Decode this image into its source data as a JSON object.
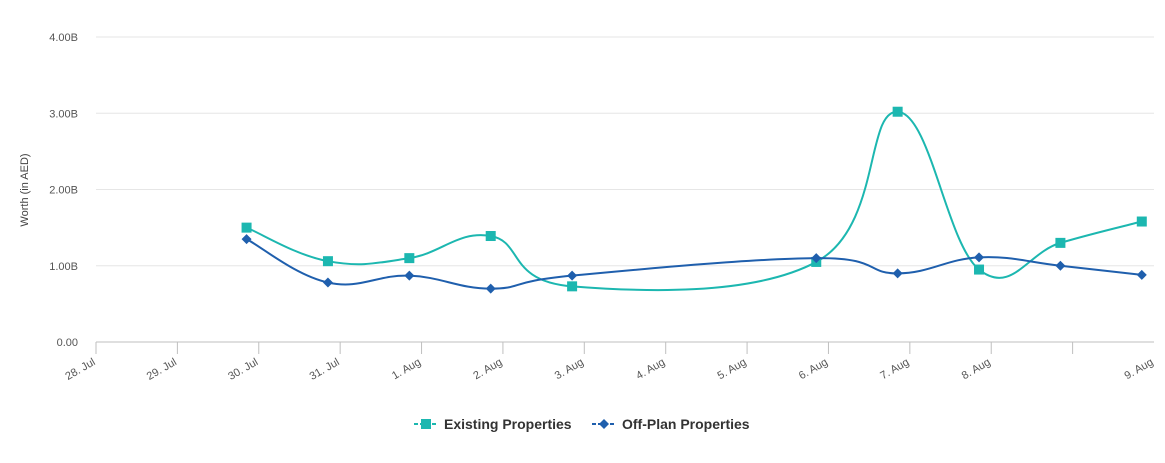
{
  "chart_data": {
    "type": "line",
    "ylabel": "Worth (in AED)",
    "xlabel": "",
    "categories": [
      "28. Jul",
      "29. Jul",
      "30. Jul",
      "31. Jul",
      "1. Aug",
      "2. Aug",
      "3. Aug",
      "4. Aug",
      "5. Aug",
      "6. Aug",
      "7. Aug",
      "8. Aug",
      "9. Aug"
    ],
    "ylim": [
      0,
      4
    ],
    "yticks": [
      0,
      1,
      2,
      3,
      4
    ],
    "ytick_labels": [
      "0.00",
      "1.00B",
      "2.00B",
      "3.00B",
      "4.00B"
    ],
    "grid": true,
    "legend_position": "bottom-center",
    "series": [
      {
        "name": "Existing Properties",
        "color": "#1cb7b0",
        "marker": "square",
        "x": [
          "29. Jul",
          "30. Jul",
          "31. Jul",
          "1. Aug",
          "2. Aug",
          "5. Aug",
          "6. Aug",
          "7. Aug",
          "8. Aug",
          "9. Aug"
        ],
        "values": [
          1.5,
          1.06,
          1.1,
          1.39,
          0.73,
          1.05,
          3.02,
          0.95,
          1.3,
          1.58
        ]
      },
      {
        "name": "Off-Plan Properties",
        "color": "#1f5fad",
        "marker": "diamond",
        "x": [
          "29. Jul",
          "30. Jul",
          "31. Jul",
          "1. Aug",
          "2. Aug",
          "5. Aug",
          "6. Aug",
          "7. Aug",
          "8. Aug",
          "9. Aug"
        ],
        "values": [
          1.35,
          0.78,
          0.87,
          0.7,
          0.87,
          1.1,
          0.9,
          1.11,
          1.0,
          0.88
        ]
      }
    ]
  }
}
